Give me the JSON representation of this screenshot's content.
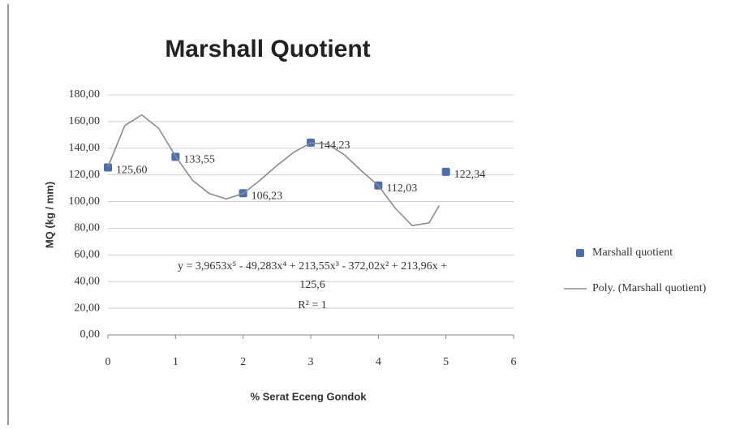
{
  "chart_data": {
    "type": "scatter",
    "title": "Marshall Quotient",
    "x_label": "% Serat Eceng Gondok",
    "y_label": "MQ (kg / mm)",
    "series": [
      {
        "name": "Marshall quotient",
        "color": "#4a6db3",
        "x": [
          0,
          1,
          2,
          3,
          4,
          5
        ],
        "values": [
          125.6,
          133.55,
          106.23,
          144.23,
          112.03,
          122.34
        ],
        "value_labels": [
          "125,60",
          "133,55",
          "106,23",
          "144,23",
          "112,03",
          "122,34"
        ]
      },
      {
        "name": "Poly. (Marshall quotient)",
        "type": "line",
        "color": "#8c8c8c",
        "x": [
          0,
          0.25,
          0.5,
          0.75,
          1,
          1.25,
          1.5,
          1.75,
          2,
          2.25,
          2.5,
          2.75,
          3,
          3.25,
          3.5,
          3.75,
          4,
          4.25,
          4.5,
          4.75,
          4.9
        ],
        "values": [
          126,
          157,
          165,
          155,
          134,
          116,
          106,
          102,
          106,
          116,
          127,
          137,
          144,
          143,
          135,
          123,
          112,
          95,
          82,
          84,
          97
        ]
      }
    ],
    "equation": [
      "y = 3,9653x⁵ - 49,283x⁴ + 213,55x³ - 372,02x² + 213,96x +",
      "125,6"
    ],
    "r_squared": "R² = 1",
    "xlim": [
      0,
      6
    ],
    "xticks": [
      0,
      1,
      2,
      3,
      4,
      5,
      6
    ],
    "ylim": [
      0,
      180
    ],
    "yticks": [
      {
        "value": 0,
        "label": "0,00"
      },
      {
        "value": 20,
        "label": "20,00"
      },
      {
        "value": 40,
        "label": "40,00"
      },
      {
        "value": 60,
        "label": "60,00"
      },
      {
        "value": 80,
        "label": "80,00"
      },
      {
        "value": 100,
        "label": "100,00"
      },
      {
        "value": 120,
        "label": "120,00"
      },
      {
        "value": 140,
        "label": "140,00"
      },
      {
        "value": 160,
        "label": "160,00"
      },
      {
        "value": 180,
        "label": "180,00"
      }
    ],
    "grid": true,
    "legend": "right"
  }
}
